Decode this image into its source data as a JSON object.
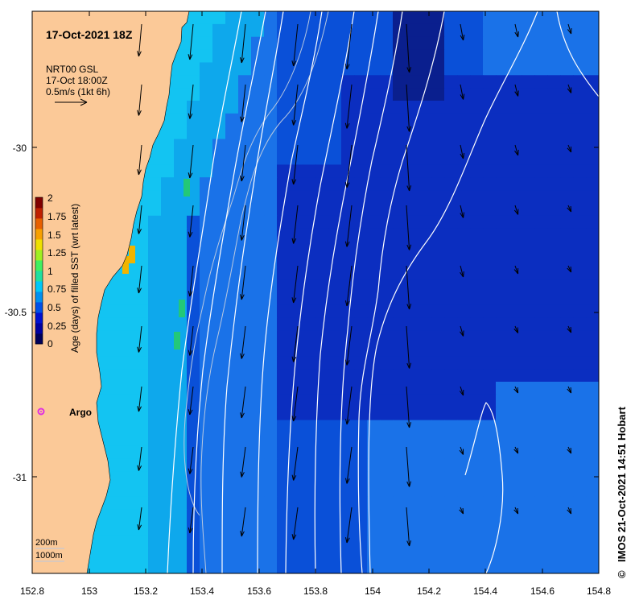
{
  "map": {
    "title": "17-Oct-2021 18Z",
    "product": "NRT00 GSL",
    "product_time": "17-Oct 18:00Z",
    "vector_scale": "0.5m/s (1kt 6h)",
    "float_label": "Argo",
    "depth_label_shallow": "200m",
    "depth_label_deep": "1000m",
    "credit": "IMOS 21-Oct-2021 14:51 Hobart",
    "credit_symbol": "©",
    "colorbar": {
      "label": "Age (days) of filled SST (wrt latest)",
      "ticks": [
        "2",
        "1.75",
        "1.5",
        "1.25",
        "1",
        "0.75",
        "0.5",
        "0.25",
        "0"
      ],
      "colors": [
        "#00005a",
        "#0000a0",
        "#0010d0",
        "#0050e8",
        "#0090f0",
        "#00c8f8",
        "#20e0a0",
        "#40f060",
        "#a0f020",
        "#f0e000",
        "#f8a000",
        "#e86000",
        "#c02000",
        "#800000"
      ]
    },
    "x_ticks": [
      "152.8",
      "153",
      "153.2",
      "153.4",
      "153.6",
      "153.8",
      "154",
      "154.2",
      "154.4",
      "154.6",
      "154.8"
    ],
    "y_ticks": [
      "-30",
      "-30.5",
      "-31"
    ],
    "colors": {
      "land": "#fbc998",
      "age_0": "#0a1f8e",
      "age_0_1": "#0b2ec0",
      "age_0_2": "#0a50d8",
      "age_0_4": "#1a72e8",
      "age_0_6": "#0ea8ec",
      "age_0_8": "#13c4f2",
      "age_1": "#23c878",
      "age_1_5": "#f0b400"
    }
  }
}
